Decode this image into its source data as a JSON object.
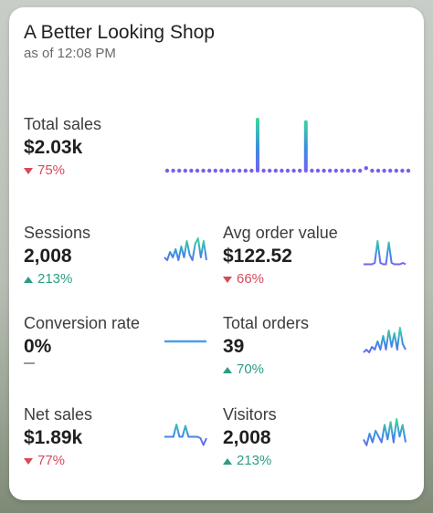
{
  "shop": {
    "title": "A Better Looking Shop",
    "as_of": "as of 12:08 PM"
  },
  "metrics": {
    "total_sales": {
      "label": "Total sales",
      "value": "$2.03k",
      "change": "75%",
      "direction": "down"
    },
    "sessions": {
      "label": "Sessions",
      "value": "2,008",
      "change": "213%",
      "direction": "up"
    },
    "avg_order_value": {
      "label": "Avg order value",
      "value": "$122.52",
      "change": "66%",
      "direction": "down"
    },
    "conversion_rate": {
      "label": "Conversion rate",
      "value": "0%",
      "change": "",
      "direction": "none"
    },
    "total_orders": {
      "label": "Total orders",
      "value": "39",
      "change": "70%",
      "direction": "up"
    },
    "net_sales": {
      "label": "Net sales",
      "value": "$1.89k",
      "change": "77%",
      "direction": "down"
    },
    "visitors": {
      "label": "Visitors",
      "value": "2,008",
      "change": "213%",
      "direction": "up"
    }
  },
  "colors": {
    "gradient_top": "#3ddc97",
    "gradient_mid": "#3b8fe0",
    "gradient_bottom": "#7b5cf0",
    "down": "#d64a5b",
    "up": "#2a9d82",
    "flat_line": "#4a9fe8"
  },
  "sparklines": {
    "total_sales": [
      0,
      0,
      0,
      0,
      0,
      0,
      0,
      0,
      0,
      0,
      0,
      0,
      0,
      0,
      0,
      1,
      0,
      0,
      0,
      0,
      0,
      0,
      0,
      0.95,
      0,
      0,
      0,
      0,
      0,
      0,
      0,
      0,
      0,
      0.05,
      0,
      0,
      0,
      0,
      0,
      0,
      0
    ],
    "sessions": [
      0.3,
      0.2,
      0.5,
      0.3,
      0.6,
      0.2,
      0.7,
      0.3,
      0.9,
      0.4,
      0.2,
      0.8,
      1,
      0.3,
      0.9,
      0.2
    ],
    "avg_order_value": [
      0.05,
      0.05,
      0.05,
      0.05,
      0.1,
      0.9,
      0.1,
      0.05,
      0.05,
      0.85,
      0.1,
      0.05,
      0.05,
      0.05,
      0.1,
      0.05
    ],
    "conversion_rate": [
      0.5,
      0.5,
      0.5,
      0.5,
      0.5,
      0.5,
      0.5,
      0.5
    ],
    "total_orders": [
      0.1,
      0.2,
      0.1,
      0.3,
      0.2,
      0.5,
      0.2,
      0.7,
      0.2,
      0.9,
      0.3,
      0.8,
      0.2,
      1,
      0.4,
      0.2
    ],
    "net_sales": [
      0.35,
      0.35,
      0.35,
      0.35,
      0.8,
      0.35,
      0.35,
      0.75,
      0.35,
      0.35,
      0.35,
      0.35,
      0.3,
      0.05,
      0.3
    ],
    "visitors": [
      0.3,
      0.1,
      0.5,
      0.2,
      0.6,
      0.4,
      0.2,
      0.8,
      0.3,
      0.9,
      0.2,
      1,
      0.4,
      0.8,
      0.2
    ]
  }
}
